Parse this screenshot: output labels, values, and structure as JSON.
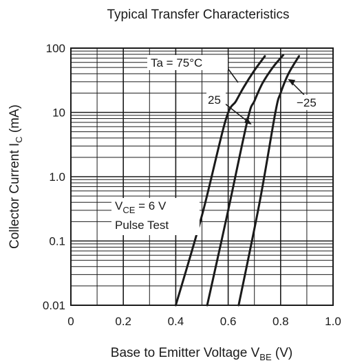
{
  "chart_data": {
    "type": "line",
    "title": "Typical Transfer Characteristics",
    "xlabel": {
      "main": "Base to Emitter Voltage  V",
      "sub": "BE",
      "unit": "  (V)"
    },
    "ylabel": {
      "main": "Collector Current  I",
      "sub": "C",
      "unit": "  (mA)"
    },
    "xlim": [
      0,
      1.0
    ],
    "ylim": [
      0.01,
      100
    ],
    "yscale": "log",
    "grid": true,
    "x_ticks": [
      0,
      0.2,
      0.4,
      0.6,
      0.8,
      1.0
    ],
    "x_tick_labels": [
      "0",
      "0.2",
      "0.4",
      "0.6",
      "0.8",
      "1.0"
    ],
    "y_ticks": [
      0.01,
      0.1,
      1,
      10,
      100
    ],
    "y_tick_labels": [
      "0.01",
      "0.1",
      "1.0",
      "10",
      "100"
    ],
    "series": [
      {
        "name": "Ta = 75°C",
        "points": [
          [
            0.4,
            0.01
          ],
          [
            0.5,
            0.25
          ],
          [
            0.59,
            7.5
          ],
          [
            0.63,
            15
          ],
          [
            0.66,
            25
          ],
          [
            0.7,
            45
          ],
          [
            0.74,
            75
          ]
        ]
      },
      {
        "name": "25",
        "points": [
          [
            0.52,
            0.01
          ],
          [
            0.6,
            0.3
          ],
          [
            0.675,
            8
          ],
          [
            0.7,
            15
          ],
          [
            0.73,
            28
          ],
          [
            0.77,
            50
          ],
          [
            0.81,
            78
          ]
        ]
      },
      {
        "name": "−25",
        "points": [
          [
            0.64,
            0.01
          ],
          [
            0.72,
            0.4
          ],
          [
            0.78,
            10
          ],
          [
            0.8,
            20
          ],
          [
            0.83,
            40
          ],
          [
            0.87,
            75
          ]
        ]
      }
    ],
    "annotations": [
      {
        "text": "Ta = 75°C"
      },
      {
        "text": "25"
      },
      {
        "text": "−25"
      }
    ],
    "conditions": {
      "vce_main": "V",
      "vce_sub": "CE",
      "vce_value": " = 6 V",
      "pulse": "Pulse Test"
    }
  }
}
